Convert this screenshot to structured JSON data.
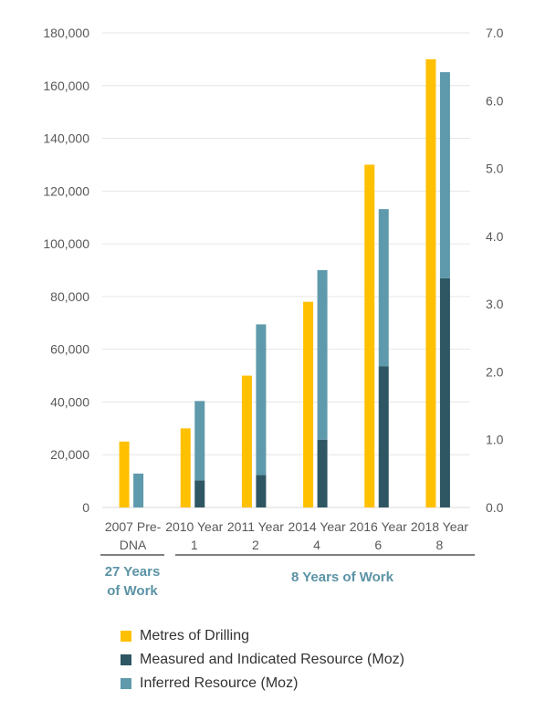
{
  "chart_data": {
    "type": "bar",
    "categories": [
      "2007 Pre-DNA",
      "2010 Year 1",
      "2011 Year 2",
      "2014 Year 4",
      "2016 Year 6",
      "2018 Year 8"
    ],
    "category_lines": [
      [
        "2007 Pre-",
        "DNA"
      ],
      [
        "2010 Year",
        "1"
      ],
      [
        "2011 Year",
        "2"
      ],
      [
        "2014 Year",
        "4"
      ],
      [
        "2016 Year",
        "6"
      ],
      [
        "2018 Year",
        "8"
      ]
    ],
    "series": [
      {
        "name": "Metres of Drilling",
        "axis": "left",
        "color": "#ffc000",
        "values": [
          25000,
          30000,
          50000,
          78000,
          130000,
          170000
        ]
      },
      {
        "name": "Measured and Indicated Resource (Moz)",
        "axis": "right",
        "color": "#2f5763",
        "stack": "resource",
        "values": [
          0,
          0.4,
          0.48,
          1.0,
          2.08,
          3.38
        ]
      },
      {
        "name": "Inferred Resource (Moz)",
        "axis": "right",
        "color": "#5e9aab",
        "stack": "resource",
        "values": [
          0.5,
          1.17,
          2.22,
          2.5,
          2.32,
          3.04
        ]
      }
    ],
    "y_left": {
      "min": 0,
      "max": 180000,
      "step": 20000,
      "tick_labels": [
        "0",
        "20,000",
        "40,000",
        "60,000",
        "80,000",
        "100,000",
        "120,000",
        "140,000",
        "160,000",
        "180,000"
      ]
    },
    "y_right": {
      "min": 0,
      "max": 7,
      "step": 1,
      "tick_labels": [
        "0.0",
        "1.0",
        "2.0",
        "3.0",
        "4.0",
        "5.0",
        "6.0",
        "7.0"
      ]
    },
    "grid": true,
    "legend_position": "bottom",
    "groups": [
      {
        "label_lines": [
          "27 Years",
          "of Work"
        ],
        "categories": [
          "2007 Pre-DNA"
        ]
      },
      {
        "label_lines": [
          "8 Years of Work"
        ],
        "categories": [
          "2010 Year 1",
          "2011 Year 2",
          "2014 Year 4",
          "2016 Year 6",
          "2018 Year 8"
        ]
      }
    ]
  }
}
